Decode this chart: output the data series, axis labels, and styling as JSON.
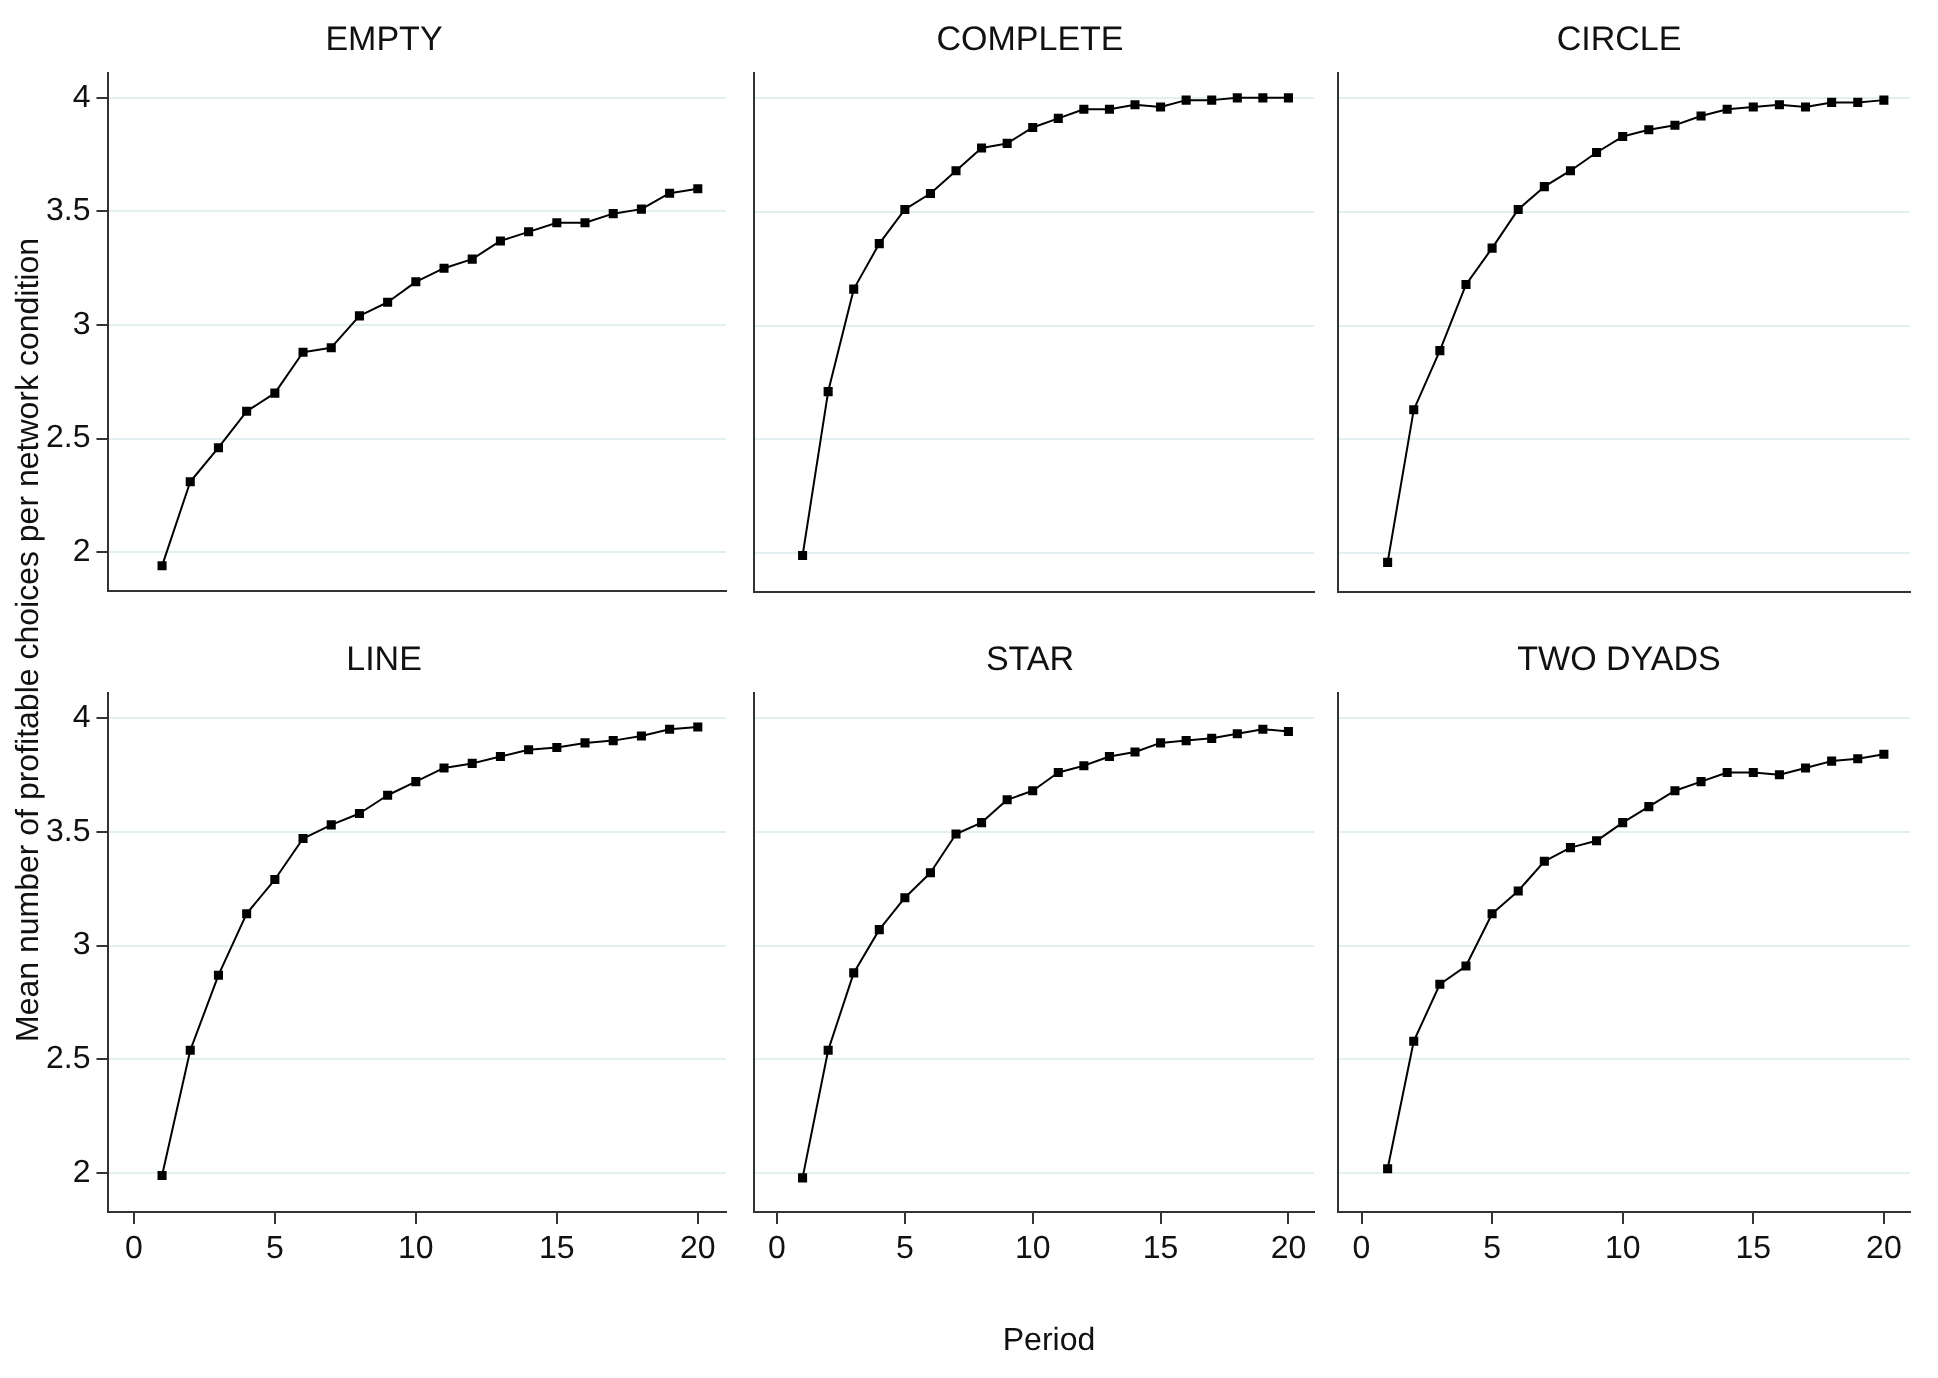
{
  "chart_data": [
    {
      "type": "line",
      "title": "EMPTY",
      "ylabel": "Mean number of profitable choices per network condition",
      "x": [
        1,
        2,
        3,
        4,
        5,
        6,
        7,
        8,
        9,
        10,
        11,
        12,
        13,
        14,
        15,
        16,
        17,
        18,
        19,
        20
      ],
      "xlim": [
        -0.9,
        21
      ],
      "xticks": [
        0,
        5,
        10,
        15,
        20
      ],
      "ylim": [
        1.83,
        4.11
      ],
      "yticks": [
        2,
        2.5,
        3,
        3.5,
        4
      ],
      "tick_labels": "y",
      "grid": "y",
      "marker": "square",
      "legend": false,
      "series": [
        {
          "color": "#000000",
          "values": [
            1.94,
            2.31,
            2.46,
            2.62,
            2.7,
            2.88,
            2.9,
            3.04,
            3.1,
            3.19,
            3.25,
            3.29,
            3.37,
            3.41,
            3.45,
            3.45,
            3.49,
            3.51,
            3.58,
            3.6
          ]
        }
      ]
    },
    {
      "type": "line",
      "title": "COMPLETE",
      "x": [
        1,
        2,
        3,
        4,
        5,
        6,
        7,
        8,
        9,
        10,
        11,
        12,
        13,
        14,
        15,
        16,
        17,
        18,
        19,
        20
      ],
      "xlim": [
        -0.9,
        21
      ],
      "xticks": [
        0,
        5,
        10,
        15,
        20
      ],
      "ylim": [
        1.83,
        4.11
      ],
      "yticks": [
        2,
        2.5,
        3,
        3.5,
        4
      ],
      "tick_labels": false,
      "grid": "y",
      "marker": "square",
      "legend": false,
      "series": [
        {
          "color": "#000000",
          "values": [
            1.99,
            2.71,
            3.16,
            3.36,
            3.51,
            3.58,
            3.68,
            3.78,
            3.8,
            3.87,
            3.91,
            3.95,
            3.95,
            3.97,
            3.96,
            3.99,
            3.99,
            4.0,
            4.0,
            4.0
          ]
        }
      ]
    },
    {
      "type": "line",
      "title": "CIRCLE",
      "x": [
        1,
        2,
        3,
        4,
        5,
        6,
        7,
        8,
        9,
        10,
        11,
        12,
        13,
        14,
        15,
        16,
        17,
        18,
        19,
        20
      ],
      "xlim": [
        -0.9,
        21
      ],
      "xticks": [
        0,
        5,
        10,
        15,
        20
      ],
      "ylim": [
        1.83,
        4.11
      ],
      "yticks": [
        2,
        2.5,
        3,
        3.5,
        4
      ],
      "tick_labels": false,
      "grid": "y",
      "marker": "square",
      "legend": false,
      "series": [
        {
          "color": "#000000",
          "values": [
            1.96,
            2.63,
            2.89,
            3.18,
            3.34,
            3.51,
            3.61,
            3.68,
            3.76,
            3.83,
            3.86,
            3.88,
            3.92,
            3.95,
            3.96,
            3.97,
            3.96,
            3.98,
            3.98,
            3.99
          ]
        }
      ]
    },
    {
      "type": "line",
      "title": "LINE",
      "x": [
        1,
        2,
        3,
        4,
        5,
        6,
        7,
        8,
        9,
        10,
        11,
        12,
        13,
        14,
        15,
        16,
        17,
        18,
        19,
        20
      ],
      "xlim": [
        -0.9,
        21
      ],
      "xticks": [
        0,
        5,
        10,
        15,
        20
      ],
      "ylim": [
        1.83,
        4.11
      ],
      "yticks": [
        2,
        2.5,
        3,
        3.5,
        4
      ],
      "grid": "y",
      "marker": "square",
      "legend": false,
      "series": [
        {
          "color": "#000000",
          "values": [
            1.99,
            2.54,
            2.87,
            3.14,
            3.29,
            3.47,
            3.53,
            3.58,
            3.66,
            3.72,
            3.78,
            3.8,
            3.83,
            3.86,
            3.87,
            3.89,
            3.9,
            3.92,
            3.95,
            3.96
          ]
        }
      ]
    },
    {
      "type": "line",
      "title": "STAR",
      "xlabel": "Period",
      "x": [
        1,
        2,
        3,
        4,
        5,
        6,
        7,
        8,
        9,
        10,
        11,
        12,
        13,
        14,
        15,
        16,
        17,
        18,
        19,
        20
      ],
      "xlim": [
        -0.9,
        21
      ],
      "xticks": [
        0,
        5,
        10,
        15,
        20
      ],
      "ylim": [
        1.83,
        4.11
      ],
      "yticks": [
        2,
        2.5,
        3,
        3.5,
        4
      ],
      "tick_labels": "x",
      "grid": "y",
      "marker": "square",
      "legend": false,
      "series": [
        {
          "color": "#000000",
          "values": [
            1.98,
            2.54,
            2.88,
            3.07,
            3.21,
            3.32,
            3.49,
            3.54,
            3.64,
            3.68,
            3.76,
            3.79,
            3.83,
            3.85,
            3.89,
            3.9,
            3.91,
            3.93,
            3.95,
            3.94
          ]
        }
      ]
    },
    {
      "type": "line",
      "title": "TWO DYADS",
      "x": [
        1,
        2,
        3,
        4,
        5,
        6,
        7,
        8,
        9,
        10,
        11,
        12,
        13,
        14,
        15,
        16,
        17,
        18,
        19,
        20
      ],
      "xlim": [
        -0.9,
        21
      ],
      "xticks": [
        0,
        5,
        10,
        15,
        20
      ],
      "ylim": [
        1.83,
        4.11
      ],
      "yticks": [
        2,
        2.5,
        3,
        3.5,
        4
      ],
      "tick_labels": "x",
      "grid": "y",
      "marker": "square",
      "legend": false,
      "series": [
        {
          "color": "#000000",
          "values": [
            2.02,
            2.58,
            2.83,
            2.91,
            3.14,
            3.24,
            3.37,
            3.43,
            3.46,
            3.54,
            3.61,
            3.68,
            3.72,
            3.76,
            3.76,
            3.75,
            3.78,
            3.81,
            3.82,
            3.84
          ]
        }
      ]
    }
  ]
}
